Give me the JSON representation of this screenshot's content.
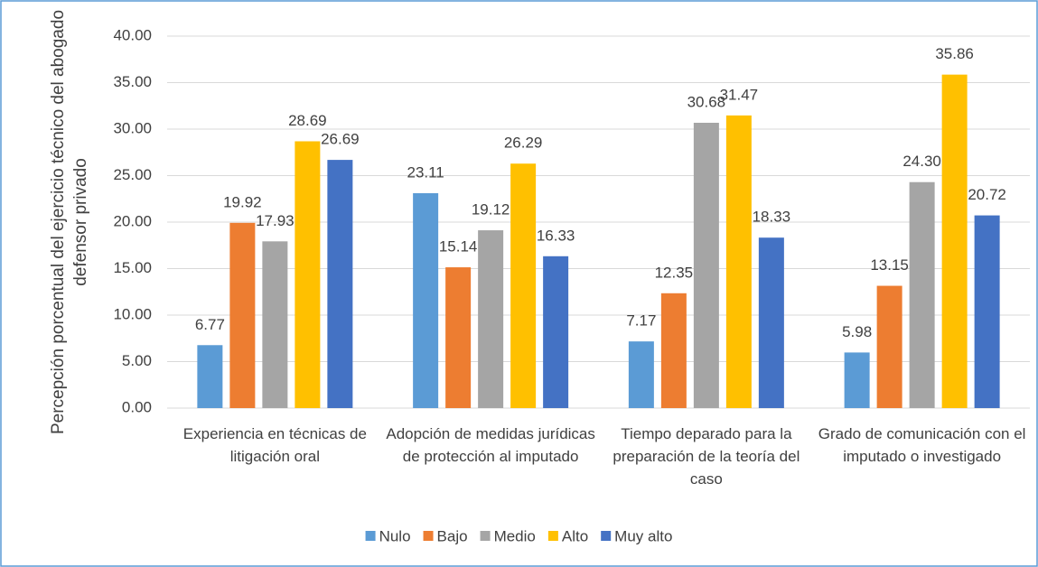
{
  "chart_data": {
    "type": "bar",
    "y_label": "Percepción porcentual del ejercicio técnico del abogado defensor privado",
    "categories": [
      "Experiencia en técnicas de litigación oral",
      "Adopción de medidas jurídicas de protección al imputado",
      "Tiempo deparado para la preparación de la teoría del caso",
      "Grado de comunicación con el imputado o investigado"
    ],
    "series": [
      {
        "name": "Nulo",
        "color": "#5b9bd5",
        "values": [
          6.77,
          23.11,
          7.17,
          5.98
        ],
        "value_labels": [
          "6.77",
          "23.11",
          "7.17",
          "5.98"
        ]
      },
      {
        "name": "Bajo",
        "color": "#ed7d31",
        "values": [
          19.92,
          15.14,
          12.35,
          13.15
        ],
        "value_labels": [
          "19.92",
          "15.14",
          "12.35",
          "13.15"
        ]
      },
      {
        "name": "Medio",
        "color": "#a5a5a5",
        "values": [
          17.93,
          19.12,
          30.68,
          24.3
        ],
        "value_labels": [
          "17.93",
          "19.12",
          "30.68",
          "24.30"
        ]
      },
      {
        "name": "Alto",
        "color": "#ffc000",
        "values": [
          28.69,
          26.29,
          31.47,
          35.86
        ],
        "value_labels": [
          "28.69",
          "26.29",
          "31.47",
          "35.86"
        ]
      },
      {
        "name": "Muy alto",
        "color": "#4472c4",
        "values": [
          26.69,
          16.33,
          18.33,
          20.72
        ],
        "value_labels": [
          "26.69",
          "16.33",
          "18.33",
          "20.72"
        ]
      }
    ],
    "ylim": [
      0,
      40
    ],
    "yticks": [
      {
        "value": 0,
        "label": "0.00"
      },
      {
        "value": 5,
        "label": "5.00"
      },
      {
        "value": 10,
        "label": "10.00"
      },
      {
        "value": 15,
        "label": "15.00"
      },
      {
        "value": 20,
        "label": "20.00"
      },
      {
        "value": 25,
        "label": "25.00"
      },
      {
        "value": 30,
        "label": "30.00"
      },
      {
        "value": 35,
        "label": "35.00"
      },
      {
        "value": 40,
        "label": "40.00"
      }
    ],
    "grid": true,
    "legend": "bottom"
  }
}
